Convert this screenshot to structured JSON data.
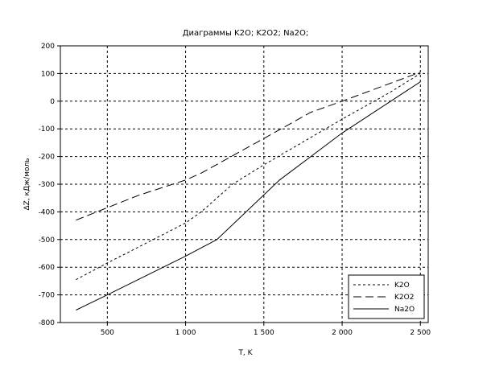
{
  "chart_data": {
    "type": "line",
    "title": "Диаграммы K2O; K2O2; Na2O;",
    "xlabel": "T, K",
    "ylabel": "ΔZ, кДж/моль",
    "xlim": [
      200,
      2550
    ],
    "ylim": [
      -800,
      200
    ],
    "x_ticks": [
      500,
      1000,
      1500,
      2000,
      2500
    ],
    "x_tick_labels": [
      "500",
      "1 000",
      "1 500",
      "2 000",
      "2 500"
    ],
    "y_ticks": [
      -800,
      -700,
      -600,
      -500,
      -400,
      -300,
      -200,
      -100,
      0,
      100,
      200
    ],
    "y_tick_labels": [
      "-800",
      "-700",
      "-600",
      "-500",
      "-400",
      "-300",
      "-200",
      "-100",
      "0",
      "100",
      "200"
    ],
    "grid": true,
    "legend_position": "bottom-right",
    "series": [
      {
        "name": "K2O",
        "style": "dotted",
        "x": [
          300,
          500,
          1000,
          1100,
          1300,
          1500,
          2000,
          2300,
          2500
        ],
        "y": [
          -645,
          -585,
          -440,
          -400,
          -300,
          -230,
          -65,
          30,
          100
        ]
      },
      {
        "name": "K2O2",
        "style": "dashed",
        "x": [
          300,
          500,
          700,
          1000,
          1100,
          1500,
          1800,
          2000,
          2500
        ],
        "y": [
          -430,
          -385,
          -340,
          -285,
          -260,
          -135,
          -40,
          0,
          105
        ]
      },
      {
        "name": "Na2O",
        "style": "solid",
        "x": [
          300,
          500,
          1000,
          1200,
          1600,
          2000,
          2500
        ],
        "y": [
          -755,
          -700,
          -560,
          -500,
          -285,
          -115,
          70
        ]
      }
    ]
  }
}
